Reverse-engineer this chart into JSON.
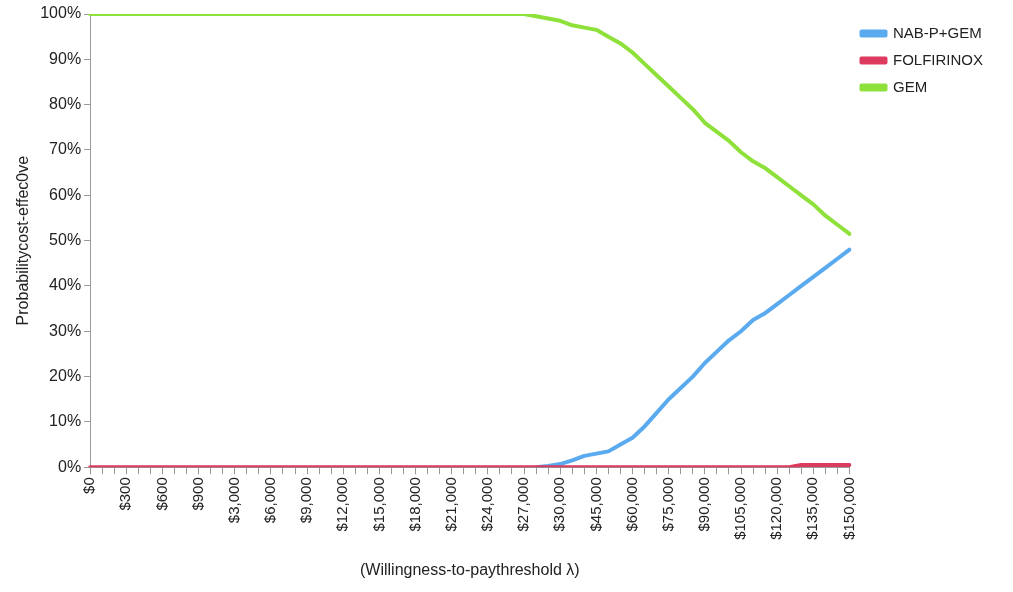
{
  "chart_data": {
    "type": "line",
    "xlabel": "(Willingness-to-paythreshold λ)",
    "ylabel": "Probabilitycost-effec0ve",
    "categories": [
      "$0",
      null,
      null,
      "$300",
      null,
      null,
      "$600",
      null,
      null,
      "$900",
      null,
      null,
      "$3,000",
      null,
      null,
      "$6,000",
      null,
      null,
      "$9,000",
      null,
      null,
      "$12,000",
      null,
      null,
      "$15,000",
      null,
      null,
      "$18,000",
      null,
      null,
      "$21,000",
      null,
      null,
      "$24,000",
      null,
      null,
      "$27,000",
      null,
      null,
      "$30,000",
      null,
      null,
      "$45,000",
      null,
      null,
      "$60,000",
      null,
      null,
      "$75,000",
      null,
      null,
      "$90,000",
      null,
      null,
      "$105,000",
      null,
      null,
      "$120,000",
      null,
      null,
      "$135,000",
      null,
      null,
      "$150,000"
    ],
    "series": [
      {
        "name": "NAB-P+GEM",
        "color": "#5aaaf0",
        "values": [
          null,
          null,
          null,
          null,
          null,
          null,
          null,
          null,
          null,
          null,
          null,
          null,
          null,
          null,
          null,
          null,
          null,
          null,
          null,
          null,
          null,
          null,
          null,
          null,
          null,
          null,
          null,
          null,
          null,
          null,
          null,
          null,
          null,
          null,
          null,
          null,
          null,
          0,
          0.3,
          0.7,
          1.5,
          2.5,
          3,
          3.5,
          5,
          6.5,
          9,
          12,
          15,
          17.5,
          20,
          23,
          25.5,
          28,
          30,
          32.5,
          34,
          36,
          38,
          40,
          42,
          44,
          46,
          48
        ]
      },
      {
        "name": "FOLFIRINOX",
        "color": "#dc3a5e",
        "values": [
          0,
          0,
          0,
          0,
          0,
          0,
          0,
          0,
          0,
          0,
          0,
          0,
          0,
          0,
          0,
          0,
          0,
          0,
          0,
          0,
          0,
          0,
          0,
          0,
          0,
          0,
          0,
          0,
          0,
          0,
          0,
          0,
          0,
          0,
          0,
          0,
          0,
          0,
          0,
          0,
          0,
          0,
          0,
          0,
          0,
          0,
          0,
          0,
          0,
          0,
          0,
          0,
          0,
          0,
          0,
          0,
          0,
          0,
          0,
          0.5,
          0.5,
          0.5,
          0.5,
          0.5
        ]
      },
      {
        "name": "GEM",
        "color": "#8ee03a",
        "values": [
          100,
          100,
          100,
          100,
          100,
          100,
          100,
          100,
          100,
          100,
          100,
          100,
          100,
          100,
          100,
          100,
          100,
          100,
          100,
          100,
          100,
          100,
          100,
          100,
          100,
          100,
          100,
          100,
          100,
          100,
          100,
          100,
          100,
          100,
          100,
          100,
          100,
          99.5,
          99,
          98.5,
          97.5,
          97,
          96.5,
          95,
          93.5,
          91.5,
          89,
          86.5,
          84,
          81.5,
          79,
          76,
          74,
          72,
          69.5,
          67.5,
          66,
          64,
          62,
          60,
          58,
          55.5,
          53.5,
          51.5
        ]
      }
    ],
    "ylim": [
      0,
      100
    ],
    "yticks": [
      {
        "value": 0,
        "label": "0%"
      },
      {
        "value": 10,
        "label": "10%"
      },
      {
        "value": 20,
        "label": "20%"
      },
      {
        "value": 30,
        "label": "30%"
      },
      {
        "value": 40,
        "label": "40%"
      },
      {
        "value": 50,
        "label": "50%"
      },
      {
        "value": 60,
        "label": "60%"
      },
      {
        "value": 70,
        "label": "70%"
      },
      {
        "value": 80,
        "label": "80%"
      },
      {
        "value": 90,
        "label": "90%"
      },
      {
        "value": 100,
        "label": "100%"
      }
    ],
    "grid": false,
    "legend": "top right",
    "marker": "none"
  }
}
